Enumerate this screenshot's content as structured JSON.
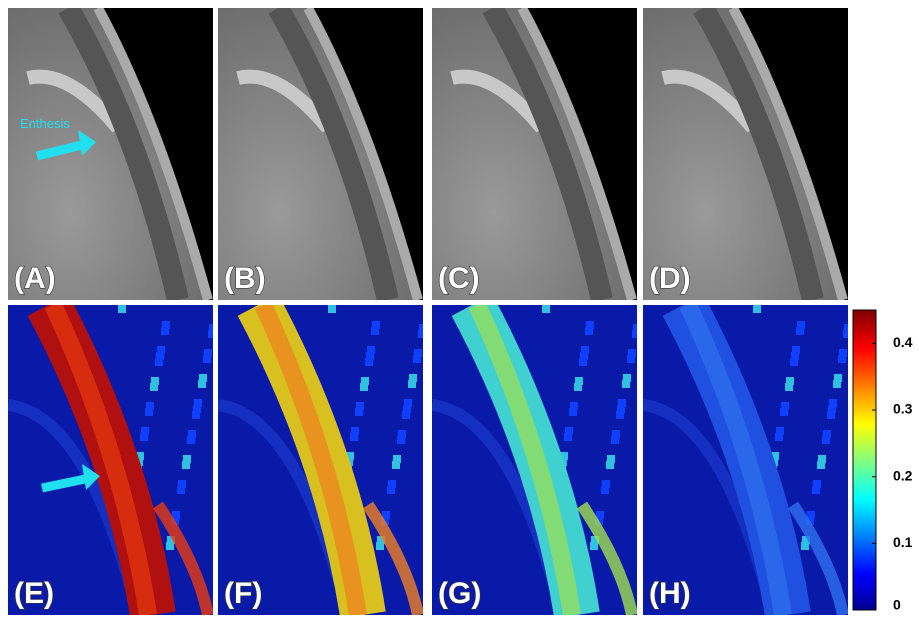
{
  "panels": [
    {
      "label": "(A)"
    },
    {
      "label": "(B)"
    },
    {
      "label": "(C)"
    },
    {
      "label": "(D)"
    },
    {
      "label": "(E)"
    },
    {
      "label": "(F)"
    },
    {
      "label": "(G)"
    },
    {
      "label": "(H)"
    }
  ],
  "annotation": "Enthesis",
  "colorbar": {
    "clim": [
      0,
      0.45
    ],
    "ticks": [
      0,
      0.1,
      0.2,
      0.3,
      0.4
    ]
  }
}
